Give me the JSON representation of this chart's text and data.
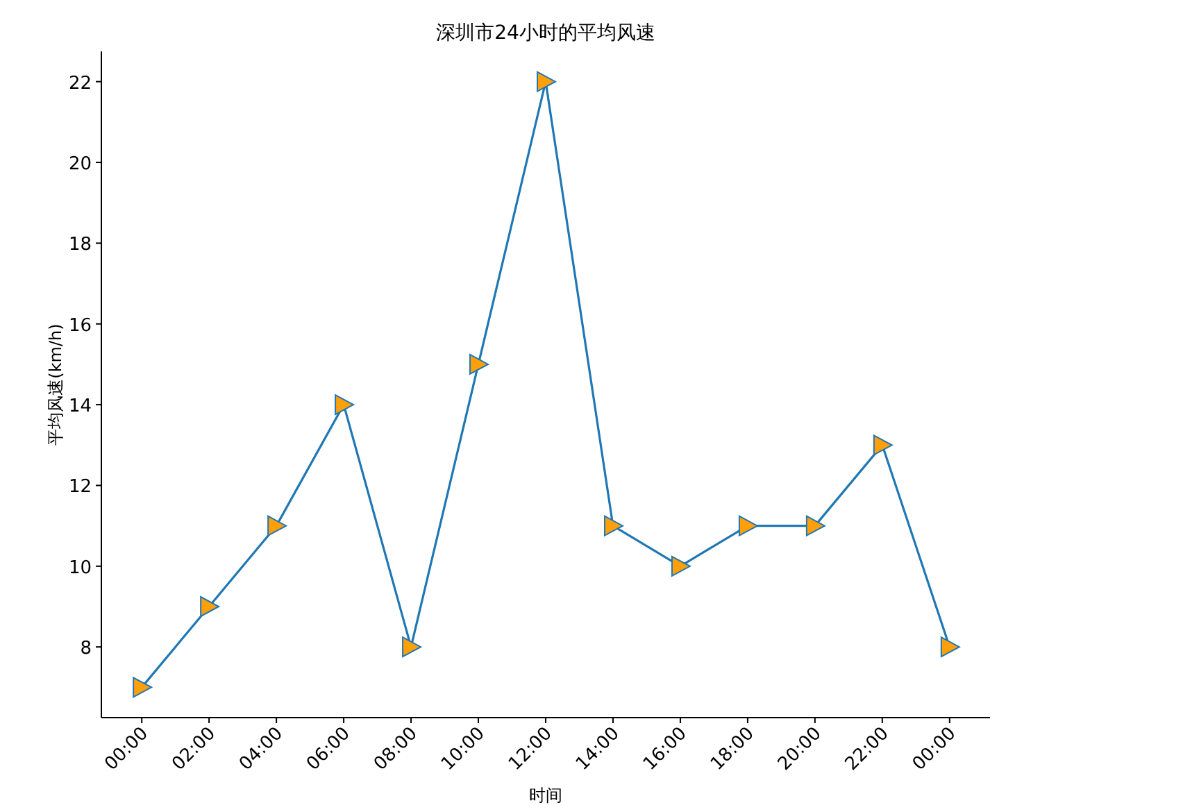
{
  "chart_data": {
    "type": "line",
    "title": "深圳市24小时的平均风速",
    "xlabel": "时间",
    "ylabel": "平均风速(km/h)",
    "categories": [
      "00:00",
      "02:00",
      "04:00",
      "06:00",
      "08:00",
      "10:00",
      "12:00",
      "14:00",
      "16:00",
      "18:00",
      "20:00",
      "22:00",
      "00:00"
    ],
    "series": [
      {
        "color": "#1f77b4",
        "values": [
          7,
          9,
          11,
          14,
          8,
          15,
          22,
          11,
          10,
          11,
          11,
          13,
          8
        ]
      }
    ],
    "ylim": [
      6.25,
      22.75
    ],
    "yticks": [
      8,
      10,
      12,
      14,
      16,
      18,
      20,
      22
    ],
    "marker": "triangle"
  }
}
